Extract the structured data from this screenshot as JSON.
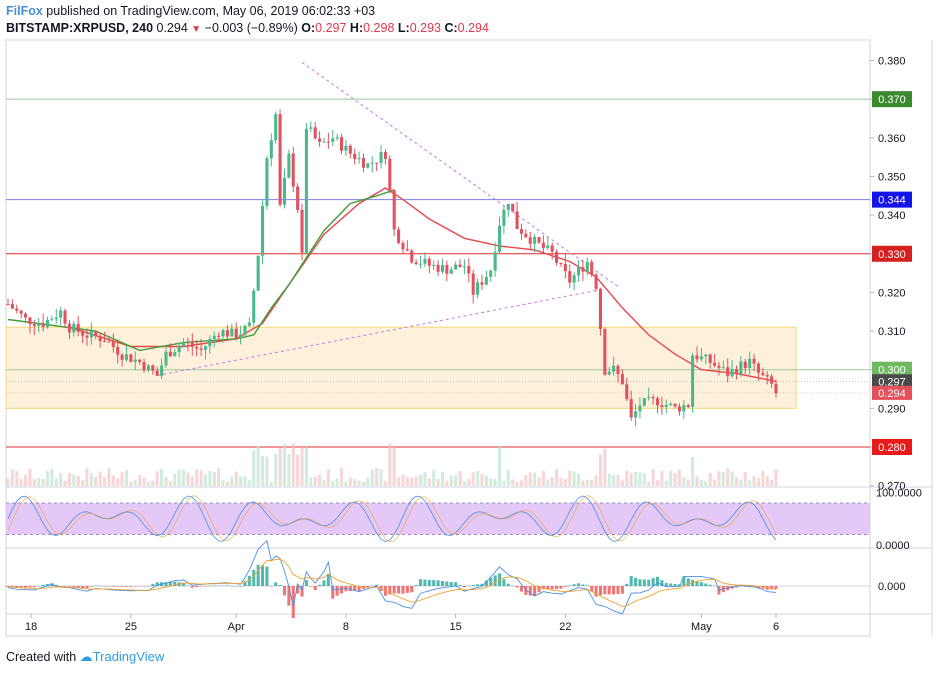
{
  "header": {
    "brand": "FilFox",
    "published_text": "published on TradingView.com, May 06, 2019 06:02:33 +03",
    "symbol": "BITSTAMP:XRPUSD, 240",
    "last": "0.294",
    "change_arrow": "▼",
    "change": "−0.003 (−0.89%)",
    "o_label": "O:",
    "o_value": "0.297",
    "h_label": "H:",
    "h_value": "0.298",
    "l_label": "L:",
    "l_value": "0.293",
    "c_label": "C:",
    "c_value": "0.294"
  },
  "footer": {
    "created_with": "Created with",
    "logo_text": "TradingView",
    "logo_icon": "tradingview-cloud-icon"
  },
  "colors": {
    "up": "#4ab88a",
    "down": "#e0525f",
    "ma_red": "#e8474f",
    "ma_green": "#3e9e3a",
    "trendline": "#c779e0",
    "zone_fill": "#fdf1dc",
    "zone_border": "#f5d770",
    "stoch_band": "#e4c8f8",
    "line_blue": "#4a90e2",
    "line_orange": "#f0a030"
  },
  "chart_data": {
    "type": "candlestick",
    "symbol": "BITSTAMP:XRPUSD",
    "interval": "240",
    "y_range": [
      0.268,
      0.386
    ],
    "x_range": [
      0,
      175
    ],
    "y_ticks": [
      "0.380",
      "0.370",
      "0.360",
      "0.350",
      "0.340",
      "0.330",
      "0.320",
      "0.310",
      "0.300",
      "0.290",
      "0.280",
      "0.270"
    ],
    "x_ticks": [
      {
        "label": "18",
        "x": 3
      },
      {
        "label": "25",
        "x": 28
      },
      {
        "label": "Apr",
        "x": 52
      },
      {
        "label": "8",
        "x": 77
      },
      {
        "label": "15",
        "x": 102
      },
      {
        "label": "22",
        "x": 127
      },
      {
        "label": "May",
        "x": 158
      },
      {
        "label": "6",
        "x": 175
      }
    ],
    "horizontal_levels": [
      {
        "value": 0.37,
        "label": "0.370",
        "line_color": "#9bc79b",
        "tag_color": "#3c8a2e"
      },
      {
        "value": 0.344,
        "label": "0.344",
        "line_color": "#7b7bf0",
        "tag_color": "#1414e8"
      },
      {
        "value": 0.33,
        "label": "0.330",
        "line_color": "#e02e2e",
        "tag_color": "#d61f1f"
      },
      {
        "value": 0.3,
        "label": "0.300",
        "line_color": "#9bc79b",
        "tag_color": "#6fba5e"
      },
      {
        "value": 0.28,
        "label": "0.280",
        "line_color": "#e02e2e",
        "tag_color": "#e81a1a"
      }
    ],
    "price_tags": [
      {
        "value": 0.297,
        "label": "0.297",
        "tag_color": "#4a4a4a"
      },
      {
        "value": 0.294,
        "label": "0.294",
        "tag_color": "#e4505c"
      }
    ],
    "zone": {
      "top": 0.311,
      "bottom": 0.29,
      "x_start": 0,
      "x_end": 180
    },
    "trendlines": [
      {
        "from": [
          34,
          0.2985
        ],
        "to": [
          134,
          0.3205
        ]
      },
      {
        "from": [
          67,
          0.3795
        ],
        "to": [
          139,
          0.3215
        ]
      }
    ],
    "ohlc_keypoints": [
      [
        0,
        0.317
      ],
      [
        4,
        0.313
      ],
      [
        8,
        0.312
      ],
      [
        12,
        0.315
      ],
      [
        14,
        0.311
      ],
      [
        18,
        0.309
      ],
      [
        22,
        0.308
      ],
      [
        26,
        0.304
      ],
      [
        30,
        0.302
      ],
      [
        34,
        0.2985
      ],
      [
        36,
        0.304
      ],
      [
        40,
        0.307
      ],
      [
        44,
        0.305
      ],
      [
        48,
        0.31
      ],
      [
        52,
        0.309
      ],
      [
        55,
        0.311
      ],
      [
        57,
        0.33
      ],
      [
        59,
        0.355
      ],
      [
        61,
        0.366
      ],
      [
        62,
        0.342
      ],
      [
        64,
        0.355
      ],
      [
        66,
        0.342
      ],
      [
        67,
        0.329
      ],
      [
        68,
        0.363
      ],
      [
        71,
        0.358
      ],
      [
        74,
        0.36
      ],
      [
        78,
        0.356
      ],
      [
        82,
        0.353
      ],
      [
        86,
        0.356
      ],
      [
        88,
        0.336
      ],
      [
        92,
        0.329
      ],
      [
        96,
        0.327
      ],
      [
        100,
        0.326
      ],
      [
        104,
        0.327
      ],
      [
        106,
        0.32
      ],
      [
        110,
        0.326
      ],
      [
        112,
        0.338
      ],
      [
        114,
        0.344
      ],
      [
        116,
        0.337
      ],
      [
        120,
        0.333
      ],
      [
        124,
        0.33
      ],
      [
        126,
        0.326
      ],
      [
        128,
        0.323
      ],
      [
        132,
        0.328
      ],
      [
        134,
        0.322
      ],
      [
        136,
        0.3
      ],
      [
        138,
        0.3
      ],
      [
        140,
        0.297
      ],
      [
        142,
        0.287
      ],
      [
        144,
        0.291
      ],
      [
        148,
        0.292
      ],
      [
        152,
        0.29
      ],
      [
        155,
        0.291
      ],
      [
        156,
        0.304
      ],
      [
        158,
        0.303
      ],
      [
        160,
        0.302
      ],
      [
        164,
        0.299
      ],
      [
        167,
        0.301
      ],
      [
        169,
        0.302
      ],
      [
        171,
        0.299
      ],
      [
        174,
        0.296
      ],
      [
        175,
        0.294
      ]
    ],
    "ma_red_keypoints": [
      [
        14,
        0.311
      ],
      [
        28,
        0.306
      ],
      [
        40,
        0.306
      ],
      [
        52,
        0.308
      ],
      [
        58,
        0.312
      ],
      [
        64,
        0.322
      ],
      [
        72,
        0.335
      ],
      [
        80,
        0.343
      ],
      [
        86,
        0.347
      ],
      [
        90,
        0.344
      ],
      [
        96,
        0.339
      ],
      [
        104,
        0.334
      ],
      [
        112,
        0.332
      ],
      [
        120,
        0.331
      ],
      [
        128,
        0.328
      ],
      [
        134,
        0.324
      ],
      [
        140,
        0.316
      ],
      [
        146,
        0.309
      ],
      [
        152,
        0.304
      ],
      [
        158,
        0.3
      ],
      [
        166,
        0.299
      ],
      [
        175,
        0.297
      ]
    ],
    "ma_green_keypoints": [
      [
        0,
        0.313
      ],
      [
        20,
        0.31
      ],
      [
        30,
        0.305
      ],
      [
        40,
        0.307
      ],
      [
        52,
        0.308
      ],
      [
        56,
        0.309
      ],
      [
        60,
        0.316
      ],
      [
        64,
        0.322
      ],
      [
        68,
        0.329
      ],
      [
        72,
        0.336
      ],
      [
        78,
        0.343
      ],
      [
        84,
        0.345
      ],
      [
        88,
        0.3465
      ]
    ],
    "stochastic": {
      "upper": "100.0000",
      "lower": "0.0000",
      "band": [
        20,
        80
      ]
    },
    "macd": {
      "zero_label": "0.000"
    }
  }
}
